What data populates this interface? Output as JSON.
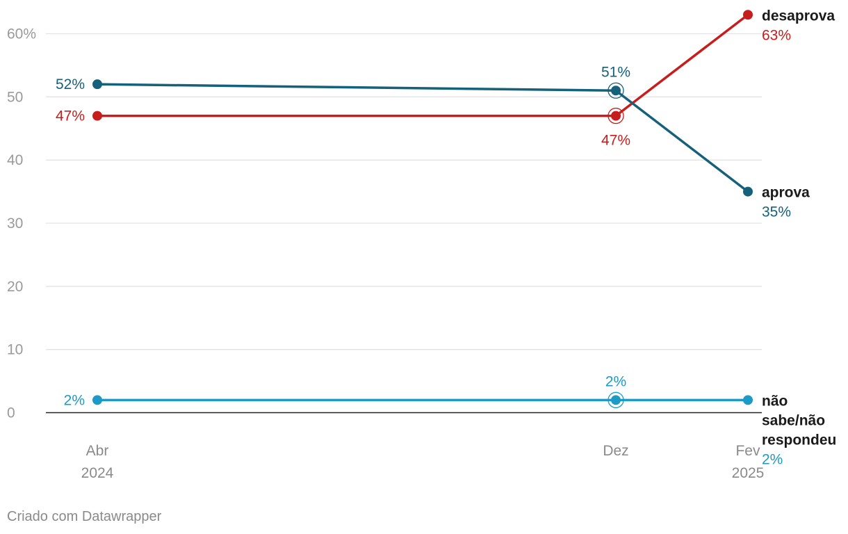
{
  "chart_data": {
    "type": "line",
    "x": [
      "Abr 2024",
      "Dez",
      "Fev 2025"
    ],
    "x_tick_labels": [
      [
        "Abr",
        "2024"
      ],
      [
        "Dez"
      ],
      [
        "Fev",
        "2025"
      ]
    ],
    "y_tick_labels": [
      "0",
      "10",
      "20",
      "30",
      "40",
      "50",
      "60%"
    ],
    "ylim": [
      0,
      65
    ],
    "y_ticks": [
      0,
      10,
      20,
      30,
      40,
      50,
      60
    ],
    "grid": true,
    "series": [
      {
        "name": "desaprova",
        "name_lines": [
          "desaprova"
        ],
        "values": [
          47,
          47,
          63
        ],
        "labels": [
          "47%",
          "47%",
          "63%"
        ],
        "end_label": "63%",
        "color": "#c71e1d"
      },
      {
        "name": "aprova",
        "name_lines": [
          "aprova"
        ],
        "values": [
          52,
          51,
          35
        ],
        "labels": [
          "52%",
          "51%",
          "35%"
        ],
        "end_label": "35%",
        "color": "#15607a"
      },
      {
        "name": "não sabe/não respondeu",
        "name_lines": [
          "não",
          "sabe/não",
          "respondeu"
        ],
        "values": [
          2,
          2,
          2
        ],
        "labels": [
          "2%",
          "2%",
          "2%"
        ],
        "end_label": "2%",
        "color": "#1d9ac6"
      }
    ]
  },
  "credit": "Criado com Datawrapper"
}
